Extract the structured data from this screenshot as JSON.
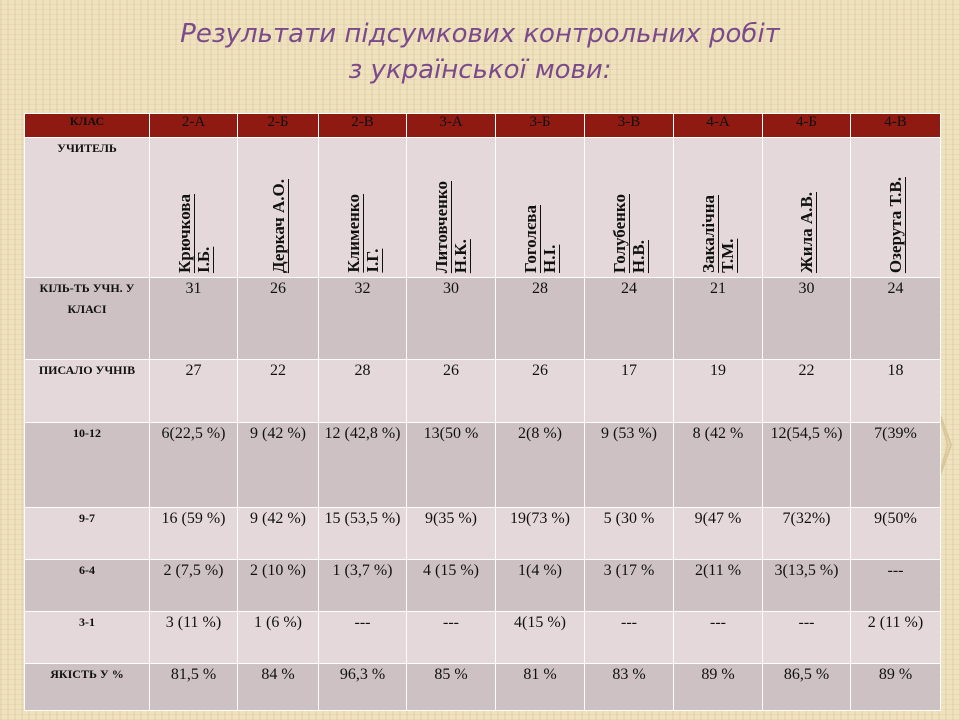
{
  "title": {
    "line1": "Результати  підсумкових контрольних робіт",
    "line2": "з української мови:"
  },
  "table": {
    "row_headers": {
      "class": "КЛАС",
      "teacher": "УЧИТЕЛЬ",
      "students": "КІЛЬ-ТЬ УЧН. У КЛАСІ",
      "wrote": "ПИСАЛО УЧНІВ",
      "g1012": "10-12",
      "g97": "9-7",
      "g64": "6-4",
      "g31": "3-1",
      "quality": "ЯКІСТЬ У %"
    },
    "classes": [
      "2-А",
      "2-Б",
      "2-В",
      "3-А",
      "3-Б",
      "3-В",
      "4-А",
      "4-Б",
      "4-В"
    ],
    "teachers": [
      "Крючкова\nІ.Б.",
      "Деркач А.О.",
      "Клименко\nІ.Г.",
      "Литовченко\nН.К.",
      "Гоголєва\nН.І.",
      "Голубенко\nН.В.",
      "Закалічна\nТ.М.",
      "Жила А.В.",
      "Озерута Т.В."
    ],
    "students": [
      "31",
      "26",
      "32",
      "30",
      "28",
      "24",
      "21",
      "30",
      "24"
    ],
    "wrote": [
      "27",
      "22",
      "28",
      "26",
      "26",
      "17",
      "19",
      "22",
      "18"
    ],
    "g1012": [
      "6(22,5 %)",
      "9 (42 %)",
      "12 (42,8 %)",
      "13(50 %",
      "2(8 %)",
      "9 (53 %)",
      "8 (42 %",
      "12(54,5 %)",
      "7(39%"
    ],
    "g97": [
      "16 (59 %)",
      "9 (42 %)",
      "15 (53,5 %)",
      "9(35 %)",
      "19(73 %)",
      "5 (30 %",
      "9(47 %",
      "7(32%)",
      "9(50%"
    ],
    "g64": [
      "2 (7,5 %)",
      "2 (10 %)",
      "1 (3,7 %)",
      "4 (15 %)",
      "1(4 %)",
      "3 (17 %",
      "2(11 %",
      "3(13,5 %)",
      "---"
    ],
    "g31": [
      "3 (11 %)",
      "1 (6 %)",
      "---",
      "---",
      "4(15 %)",
      "---",
      "---",
      "---",
      "2 (11 %)"
    ],
    "quality": [
      "81,5  %",
      "84 %",
      "96,3 %",
      "85 %",
      "81 %",
      "83 %",
      "89 %",
      "86,5 %",
      "89 %"
    ]
  },
  "colors": {
    "header_bg": "#8e1a12",
    "row_light": "#e5d8db",
    "row_dark": "#cdc1c3",
    "title": "#7b4a8c",
    "background": "#efe2bf"
  }
}
